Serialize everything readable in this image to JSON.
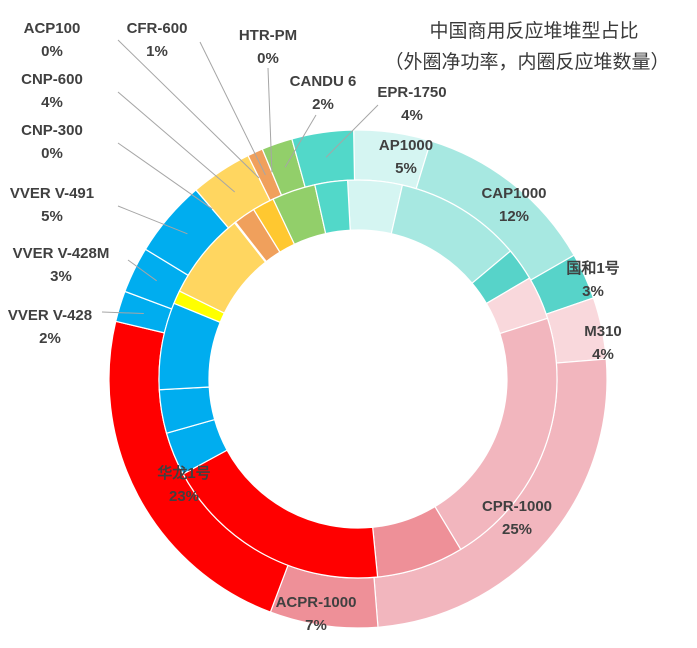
{
  "chart_data": {
    "type": "pie",
    "variant": "double-ring",
    "title_lines": [
      "中国商用反应堆堆型占比",
      "（外圈净功率，内圈反应堆数量）"
    ],
    "outer_ring": {
      "categories": [
        "AP1000",
        "CAP1000",
        "国和1号",
        "M310",
        "CPR-1000",
        "ACPR-1000",
        "华龙1号",
        "VVER V-428",
        "VVER V-428M",
        "VVER V-491",
        "CNP-300",
        "CNP-600",
        "ACP100",
        "CFR-600",
        "HTR-PM",
        "CANDU 6",
        "EPR-1750"
      ],
      "values": [
        5,
        12,
        3,
        4,
        25,
        7,
        23,
        2,
        3,
        5,
        0,
        4,
        0,
        1,
        0,
        2,
        4
      ],
      "value_labels": [
        "5%",
        "12%",
        "3%",
        "4%",
        "25%",
        "7%",
        "23%",
        "2%",
        "3%",
        "5%",
        "0%",
        "4%",
        "0%",
        "1%",
        "0%",
        "2%",
        "4%"
      ]
    },
    "inner_ring": {
      "categories": [
        "AP1000",
        "CAP1000",
        "国和1号",
        "M310",
        "CPR-1000",
        "ACPR-1000",
        "华龙1号",
        "VVER V-428",
        "VVER V-428M",
        "VVER V-491",
        "CNP-300",
        "CNP-600",
        "ACP100",
        "CFR-600",
        "HTR-PM",
        "CANDU 6",
        "EPR-1750"
      ],
      "values": [
        4.5,
        10.5,
        2.7,
        3.6,
        21.7,
        7.2,
        19.0,
        3.6,
        3.6,
        7.2,
        1.1,
        7.2,
        0.1,
        1.8,
        1.8,
        3.6,
        2.7
      ]
    },
    "colors": [
      "#d5f5f2",
      "#a7e8e1",
      "#57d3c9",
      "#f9d8dc",
      "#f2b6be",
      "#ee9098",
      "#ff0000",
      "#00adef",
      "#00adef",
      "#00adef",
      "#ffff00",
      "#ffd660",
      "#7a3a0e",
      "#f0a05c",
      "#ffc830",
      "#92cf6a",
      "#52d8c9"
    ],
    "grid": false,
    "legend": "none"
  }
}
